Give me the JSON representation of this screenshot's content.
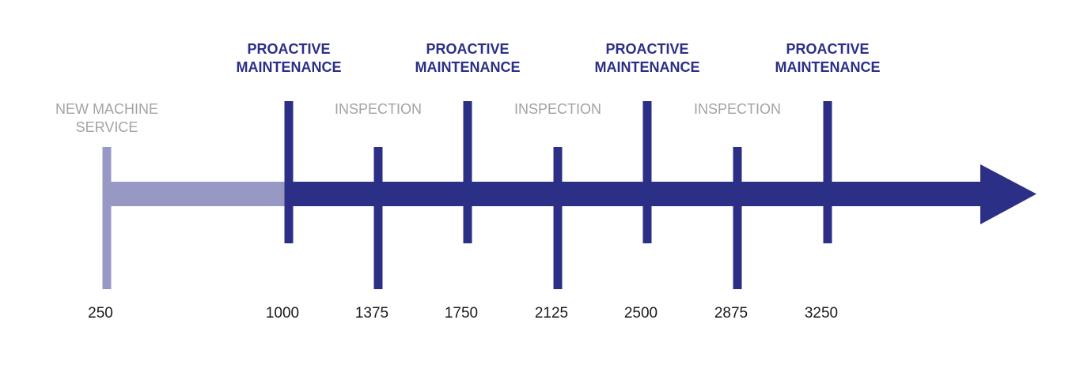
{
  "colors": {
    "primary": "#2c2f86",
    "light": "#9898c4",
    "muted_text": "#a3a3a3",
    "hour_text": "#1a1a1a"
  },
  "events": [
    {
      "hours": "250",
      "kind": "new",
      "label": [
        "NEW MACHINE",
        "SERVICE"
      ]
    },
    {
      "hours": "1000",
      "kind": "proactive",
      "label": [
        "PROACTIVE",
        "MAINTENANCE"
      ]
    },
    {
      "hours": "1375",
      "kind": "inspection",
      "label": [
        "INSPECTION"
      ]
    },
    {
      "hours": "1750",
      "kind": "proactive",
      "label": [
        "PROACTIVE",
        "MAINTENANCE"
      ]
    },
    {
      "hours": "2125",
      "kind": "inspection",
      "label": [
        "INSPECTION"
      ]
    },
    {
      "hours": "2500",
      "kind": "proactive",
      "label": [
        "PROACTIVE",
        "MAINTENANCE"
      ]
    },
    {
      "hours": "2875",
      "kind": "inspection",
      "label": [
        "INSPECTION"
      ]
    },
    {
      "hours": "3250",
      "kind": "proactive",
      "label": [
        "PROACTIVE",
        "MAINTENANCE"
      ]
    }
  ]
}
